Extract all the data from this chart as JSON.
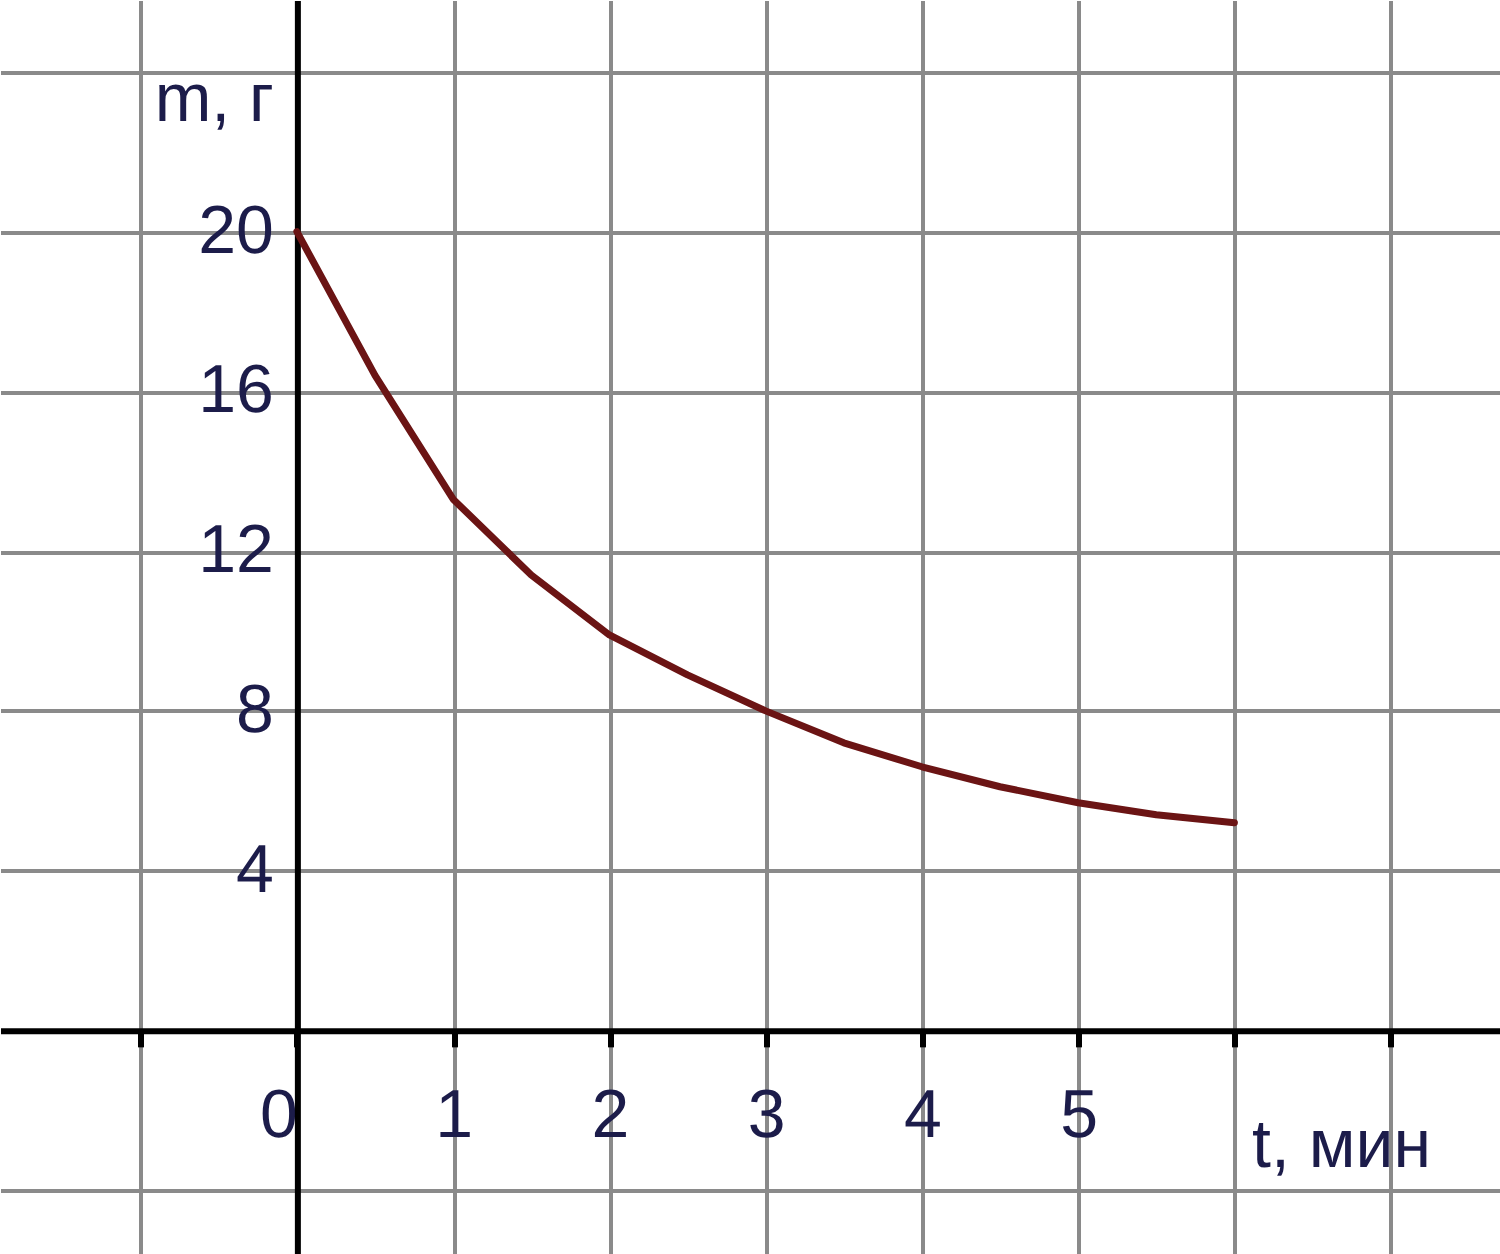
{
  "chart_data": {
    "type": "line",
    "xlabel": "t, мин",
    "ylabel": "m, г",
    "x": [
      0,
      0.5,
      1,
      1.5,
      2,
      2.5,
      3,
      3.5,
      4,
      4.5,
      5,
      5.5,
      6
    ],
    "series": [
      {
        "color": "#6b1414",
        "values": [
          20,
          16.4,
          13.3,
          11.4,
          9.9,
          8.9,
          8.0,
          7.2,
          6.6,
          6.1,
          5.7,
          5.4,
          5.2
        ]
      }
    ],
    "xlim": [
      -1.9,
      7.7
    ],
    "ylim": [
      -5.6,
      25.8
    ],
    "xticks": [
      {
        "value": -1,
        "label": null
      },
      0,
      1,
      2,
      3,
      4,
      5,
      {
        "value": 6,
        "label": null
      },
      {
        "value": 7,
        "label": null
      }
    ],
    "yticks": [
      {
        "value": -4,
        "label": null
      },
      {
        "value": 0,
        "label": null
      },
      4,
      8,
      12,
      16,
      20,
      {
        "value": 24,
        "label": null
      }
    ],
    "grid": true,
    "marker": "none",
    "line_style": "solid"
  }
}
